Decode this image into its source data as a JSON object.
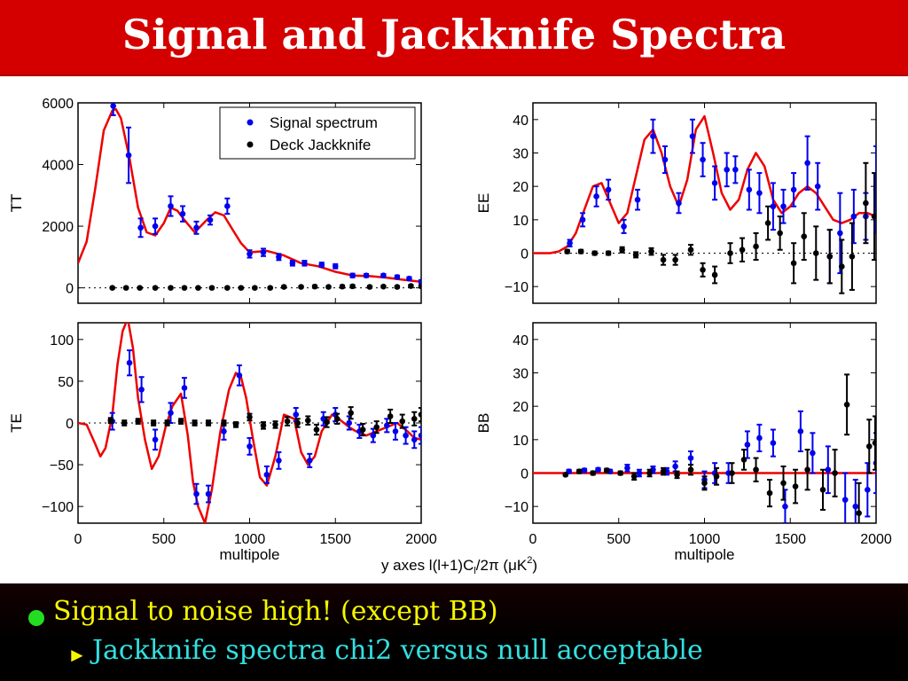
{
  "title": "Signal and Jackknife Spectra",
  "bullets": {
    "main": "Signal to noise high! (except BB)",
    "sub": "Jackknife spectra chi2 versus null acceptable"
  },
  "colors": {
    "title_bar": "#d40000",
    "signal": "#0000ee",
    "jackknife": "#000000",
    "model": "#ee0000",
    "bullet_main": "#f6f600",
    "bullet_sub": "#33e0e0",
    "bullet_dot": "#22dd22"
  },
  "figure": {
    "y_axes_note": "y axes l(l+1)C",
    "y_axes_note_sub": "l",
    "y_axes_note_tail": "/2π (μK",
    "y_axes_note_sup": "2",
    "y_axes_note_end": ")"
  },
  "chart_data": [
    {
      "id": "TT",
      "type": "scatter",
      "ylabel": "TT",
      "xlabel": "",
      "xlim": [
        0,
        2000
      ],
      "ylim": [
        -500,
        6000
      ],
      "xticks": [
        0,
        500,
        1000,
        1500,
        2000
      ],
      "show_xticklabels": false,
      "yticks": [
        0,
        2000,
        4000,
        6000
      ],
      "ytick_labels": [
        "0",
        "2000",
        "4000",
        "6000"
      ],
      "legend": {
        "position": "top-right",
        "entries": [
          "Signal spectrum",
          "Deck Jackknife"
        ]
      },
      "model": {
        "x": [
          0,
          50,
          100,
          150,
          200,
          220,
          250,
          300,
          350,
          400,
          450,
          500,
          540,
          580,
          620,
          680,
          750,
          800,
          850,
          900,
          950,
          1000,
          1100,
          1200,
          1300,
          1400,
          1500,
          1600,
          1700,
          1800,
          1900,
          2000
        ],
        "y": [
          800,
          1500,
          3200,
          5100,
          5750,
          5800,
          5500,
          4200,
          2600,
          1800,
          1700,
          2100,
          2600,
          2500,
          2200,
          1800,
          2200,
          2450,
          2350,
          1900,
          1450,
          1150,
          1200,
          1050,
          800,
          700,
          520,
          400,
          380,
          330,
          260,
          200
        ]
      },
      "series": [
        {
          "name": "Signal spectrum",
          "x": [
            205,
            295,
            365,
            450,
            540,
            610,
            690,
            770,
            870,
            1000,
            1080,
            1170,
            1250,
            1320,
            1420,
            1500,
            1600,
            1680,
            1780,
            1860,
            1930,
            2000
          ],
          "y": [
            5900,
            4300,
            1950,
            2000,
            2650,
            2400,
            1950,
            2200,
            2650,
            1100,
            1150,
            1000,
            800,
            800,
            750,
            700,
            400,
            400,
            400,
            350,
            300,
            200
          ],
          "err": [
            300,
            900,
            300,
            250,
            320,
            250,
            200,
            150,
            250,
            120,
            120,
            100,
            80,
            80,
            70,
            70,
            60,
            50,
            50,
            50,
            50,
            50
          ]
        },
        {
          "name": "Deck Jackknife",
          "x": [
            200,
            280,
            360,
            450,
            540,
            620,
            700,
            780,
            870,
            950,
            1030,
            1120,
            1200,
            1300,
            1380,
            1460,
            1540,
            1600,
            1700,
            1780,
            1860,
            1940,
            2000
          ],
          "y": [
            0,
            0,
            0,
            0,
            0,
            0,
            0,
            0,
            0,
            0,
            0,
            0,
            30,
            30,
            40,
            30,
            40,
            50,
            30,
            40,
            30,
            60,
            50
          ],
          "err": [
            20,
            20,
            20,
            20,
            20,
            20,
            20,
            20,
            20,
            20,
            20,
            20,
            30,
            30,
            40,
            30,
            40,
            40,
            30,
            30,
            30,
            40,
            40
          ]
        }
      ]
    },
    {
      "id": "EE",
      "type": "scatter",
      "ylabel": "EE",
      "xlabel": "",
      "xlim": [
        0,
        2000
      ],
      "ylim": [
        -15,
        45
      ],
      "xticks": [
        0,
        500,
        1000,
        1500,
        2000
      ],
      "show_xticklabels": false,
      "yticks": [
        -10,
        0,
        10,
        20,
        30,
        40
      ],
      "ytick_labels": [
        "−10",
        "0",
        "10",
        "20",
        "30",
        "40"
      ],
      "model": {
        "x": [
          0,
          100,
          150,
          200,
          250,
          300,
          350,
          400,
          450,
          500,
          550,
          600,
          650,
          700,
          750,
          800,
          850,
          900,
          950,
          1000,
          1050,
          1100,
          1150,
          1200,
          1250,
          1300,
          1350,
          1400,
          1450,
          1500,
          1550,
          1600,
          1650,
          1700,
          1750,
          1800,
          1850,
          1900,
          1950,
          2000
        ],
        "y": [
          0,
          0,
          0.5,
          2,
          6,
          13,
          20,
          21,
          15,
          9,
          12,
          23,
          34,
          37,
          30,
          20,
          14,
          22,
          37,
          41,
          30,
          18,
          13,
          16,
          25,
          30,
          26,
          16,
          12,
          14,
          18,
          20,
          18,
          14,
          10,
          9,
          10,
          12,
          12,
          11
        ]
      },
      "series": [
        {
          "name": "Signal spectrum",
          "x": [
            215,
            290,
            370,
            440,
            530,
            610,
            700,
            770,
            850,
            930,
            990,
            1060,
            1130,
            1180,
            1260,
            1320,
            1400,
            1460,
            1520,
            1600,
            1660,
            1730,
            1790,
            1870,
            1940,
            2000
          ],
          "y": [
            3,
            10,
            17,
            19,
            8,
            16,
            35,
            28,
            15,
            35,
            28,
            21,
            25,
            25,
            19,
            18,
            14,
            14,
            19,
            27,
            20,
            -1,
            6,
            11,
            11,
            19
          ],
          "err": [
            1,
            2,
            3,
            3,
            2,
            3,
            5,
            4,
            3,
            5,
            5,
            5,
            5,
            4,
            6,
            6,
            7,
            5,
            5,
            8,
            7,
            8,
            12,
            8,
            7,
            13
          ]
        },
        {
          "name": "Deck Jackknife",
          "x": [
            200,
            280,
            360,
            440,
            520,
            600,
            690,
            760,
            830,
            920,
            990,
            1060,
            1150,
            1220,
            1300,
            1370,
            1440,
            1520,
            1580,
            1650,
            1730,
            1800,
            1860,
            1940,
            1990
          ],
          "y": [
            0.5,
            0.5,
            0,
            0,
            1,
            -0.5,
            0.5,
            -2,
            -2,
            1,
            -5,
            -6.5,
            0,
            1,
            2,
            9,
            6,
            -3,
            5,
            0,
            -1,
            -4,
            -1,
            15,
            11
          ],
          "err": [
            0.5,
            0.5,
            0.5,
            0.5,
            0.8,
            0.8,
            1,
            1.5,
            1.5,
            1.5,
            2,
            2.5,
            3,
            3.5,
            4,
            5,
            5,
            6,
            7,
            8,
            8,
            8,
            10,
            12,
            13
          ]
        }
      ]
    },
    {
      "id": "TE",
      "type": "scatter",
      "ylabel": "TE",
      "xlabel": "multipole",
      "xlim": [
        0,
        2000
      ],
      "ylim": [
        -120,
        120
      ],
      "xticks": [
        0,
        500,
        1000,
        1500,
        2000
      ],
      "show_xticklabels": true,
      "xtick_labels": [
        "0",
        "500",
        "1000",
        "1500",
        "2000"
      ],
      "yticks": [
        -100,
        -50,
        0,
        50,
        100
      ],
      "ytick_labels": [
        "−100",
        "−50",
        "0",
        "50",
        "100"
      ],
      "model": {
        "x": [
          0,
          50,
          100,
          130,
          160,
          200,
          230,
          260,
          290,
          320,
          350,
          390,
          430,
          470,
          510,
          550,
          600,
          640,
          670,
          700,
          740,
          780,
          830,
          880,
          920,
          950,
          980,
          1020,
          1060,
          1100,
          1150,
          1200,
          1260,
          1300,
          1340,
          1380,
          1420,
          1480,
          1520,
          1580,
          1620,
          1680,
          1740,
          1800,
          1860,
          1920,
          1960,
          2000
        ],
        "y": [
          0,
          -2,
          -25,
          -40,
          -30,
          10,
          70,
          110,
          125,
          90,
          30,
          -20,
          -55,
          -40,
          -5,
          20,
          35,
          -15,
          -70,
          -100,
          -120,
          -80,
          -10,
          40,
          60,
          55,
          30,
          -20,
          -65,
          -75,
          -40,
          10,
          5,
          -35,
          -50,
          -40,
          -10,
          10,
          5,
          -5,
          -10,
          -15,
          -10,
          -5,
          0,
          -10,
          -18,
          -20
        ]
      },
      "series": [
        {
          "name": "Signal spectrum",
          "x": [
            200,
            300,
            370,
            450,
            540,
            620,
            690,
            760,
            850,
            940,
            1000,
            1100,
            1170,
            1270,
            1350,
            1430,
            1500,
            1580,
            1640,
            1720,
            1800,
            1850,
            1910,
            1960,
            2000
          ],
          "y": [
            2,
            72,
            40,
            -20,
            12,
            42,
            -85,
            -85,
            -10,
            57,
            -28,
            -62,
            -45,
            10,
            -45,
            5,
            10,
            0,
            -10,
            -15,
            -3,
            -10,
            -15,
            -20,
            -15
          ],
          "err": [
            10,
            15,
            15,
            12,
            12,
            12,
            12,
            10,
            10,
            12,
            10,
            10,
            10,
            8,
            8,
            8,
            8,
            8,
            8,
            8,
            8,
            10,
            10,
            10,
            10
          ]
        },
        {
          "name": "Deck Jackknife",
          "x": [
            190,
            270,
            350,
            440,
            520,
            600,
            680,
            760,
            850,
            920,
            1000,
            1080,
            1150,
            1220,
            1280,
            1340,
            1390,
            1450,
            1510,
            1590,
            1660,
            1740,
            1820,
            1890,
            1960,
            2000
          ],
          "y": [
            3,
            0,
            2,
            0,
            0,
            2,
            0,
            0,
            0,
            -2,
            7,
            -3,
            -2,
            2,
            0,
            3,
            -8,
            1,
            5,
            12,
            -8,
            -5,
            8,
            2,
            5,
            10
          ],
          "err": [
            3,
            3,
            3,
            3,
            3,
            3,
            3,
            3,
            3,
            3,
            4,
            4,
            4,
            5,
            5,
            5,
            6,
            6,
            6,
            7,
            7,
            7,
            8,
            8,
            8,
            8
          ]
        }
      ]
    },
    {
      "id": "BB",
      "type": "scatter",
      "ylabel": "BB",
      "xlabel": "multipole",
      "xlim": [
        0,
        2000
      ],
      "ylim": [
        -15,
        45
      ],
      "xticks": [
        0,
        500,
        1000,
        1500,
        2000
      ],
      "show_xticklabels": true,
      "xtick_labels": [
        "0",
        "500",
        "1000",
        "1500",
        "2000"
      ],
      "yticks": [
        -10,
        0,
        10,
        20,
        30,
        40
      ],
      "ytick_labels": [
        "−10",
        "0",
        "10",
        "20",
        "30",
        "40"
      ],
      "model": {
        "x": [
          0,
          2000
        ],
        "y": [
          0,
          0
        ]
      },
      "series": [
        {
          "name": "Signal spectrum",
          "x": [
            210,
            300,
            380,
            450,
            550,
            620,
            700,
            780,
            830,
            920,
            1000,
            1060,
            1140,
            1250,
            1320,
            1400,
            1470,
            1560,
            1630,
            1720,
            1820,
            1880,
            1950,
            2000
          ],
          "y": [
            0.5,
            0.8,
            1,
            0.5,
            1.5,
            0,
            1,
            0.5,
            2,
            4.5,
            -2,
            0,
            0,
            8.5,
            10.5,
            9,
            -10,
            12.5,
            6,
            1,
            -8,
            -10,
            -5,
            3
          ],
          "err": [
            0.5,
            0.5,
            0.5,
            0.5,
            1,
            1,
            1,
            1,
            1.5,
            2,
            2.5,
            3,
            3,
            4,
            4,
            4,
            5,
            6,
            6,
            7,
            8,
            8,
            8,
            9
          ]
        },
        {
          "name": "Deck Jackknife",
          "x": [
            190,
            270,
            350,
            430,
            510,
            590,
            680,
            760,
            840,
            920,
            1000,
            1070,
            1160,
            1230,
            1300,
            1380,
            1460,
            1530,
            1600,
            1690,
            1760,
            1830,
            1900,
            1960,
            1995
          ],
          "y": [
            -0.5,
            0.5,
            0,
            0.8,
            0,
            -1,
            0,
            0.5,
            -0.5,
            1,
            -3,
            -1,
            0,
            4,
            1,
            -6,
            -3,
            -4,
            1,
            -5,
            0,
            20.5,
            -12,
            8,
            9
          ],
          "err": [
            0.3,
            0.5,
            0.5,
            0.5,
            0.5,
            1,
            1,
            1,
            1,
            1.5,
            2,
            2.5,
            3,
            3,
            3.5,
            4,
            5,
            5,
            6,
            6,
            7,
            9,
            9,
            8,
            8
          ]
        }
      ]
    }
  ]
}
